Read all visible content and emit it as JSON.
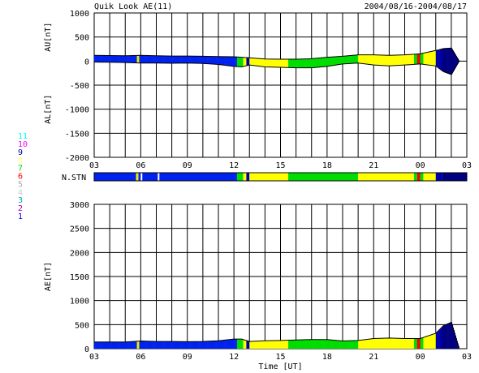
{
  "header": {
    "title": "Quik Look AE(11)",
    "date_range": "2004/08/16-2004/08/17"
  },
  "legend": {
    "entries": [
      {
        "label": "11",
        "color": "#00ffff"
      },
      {
        "label": "10",
        "color": "#ff00ff"
      },
      {
        "label": "9",
        "color": "#0000aa"
      },
      {
        "label": "8",
        "color": "#ffff88"
      },
      {
        "label": "7",
        "color": "#00dd00"
      },
      {
        "label": "6",
        "color": "#ff0000"
      },
      {
        "label": "5",
        "color": "#aaaaaa"
      },
      {
        "label": "4",
        "color": "#cccccc"
      },
      {
        "label": "3",
        "color": "#00aaaa"
      },
      {
        "label": "2",
        "color": "#aa00aa"
      },
      {
        "label": "1",
        "color": "#0000ff"
      }
    ]
  },
  "chart_data": [
    {
      "type": "area",
      "name": "AU/AL",
      "ylabel_top": "AU[nT]",
      "ylabel_bottom": "AL[nT]",
      "ylim": [
        -2000,
        1000
      ],
      "yticks": [
        1000,
        500,
        0,
        -500,
        -1000,
        -1500,
        -2000
      ],
      "xticks": [
        "03",
        "06",
        "09",
        "12",
        "15",
        "18",
        "21",
        "00",
        "03"
      ],
      "xlim_hours": [
        3,
        27
      ],
      "grid": true,
      "x_hours": [
        3,
        4,
        5,
        6,
        7,
        8,
        9,
        10,
        11,
        12,
        12.5,
        13,
        14,
        15,
        16,
        17,
        18,
        19,
        20,
        21,
        22,
        23,
        24,
        25,
        25.5,
        26,
        26.5
      ],
      "au": [
        120,
        115,
        110,
        120,
        110,
        105,
        105,
        100,
        95,
        90,
        80,
        70,
        45,
        40,
        40,
        50,
        80,
        100,
        130,
        130,
        120,
        130,
        150,
        220,
        260,
        270,
        0
      ],
      "al": [
        -20,
        -25,
        -30,
        -40,
        -40,
        -45,
        -40,
        -50,
        -70,
        -110,
        -120,
        -80,
        -120,
        -130,
        -140,
        -140,
        -110,
        -60,
        -40,
        -80,
        -100,
        -80,
        -60,
        -100,
        -220,
        -280,
        0
      ]
    },
    {
      "type": "area",
      "name": "AE",
      "ylabel": "AE[nT]",
      "xlabel": "Time [UT]",
      "ylim": [
        0,
        3000
      ],
      "yticks": [
        3000,
        2500,
        2000,
        1500,
        1000,
        500,
        0
      ],
      "xticks": [
        "03",
        "06",
        "09",
        "12",
        "15",
        "18",
        "21",
        "00",
        "03"
      ],
      "xlim_hours": [
        3,
        27
      ],
      "grid": true,
      "x_hours": [
        3,
        4,
        5,
        6,
        7,
        8,
        9,
        10,
        11,
        12,
        12.5,
        13,
        14,
        15,
        16,
        17,
        18,
        19,
        20,
        21,
        22,
        23,
        24,
        25,
        25.5,
        26,
        26.5
      ],
      "values": [
        140,
        140,
        140,
        160,
        150,
        150,
        145,
        150,
        165,
        200,
        200,
        150,
        165,
        170,
        180,
        190,
        190,
        160,
        170,
        210,
        220,
        210,
        210,
        320,
        480,
        550,
        0
      ]
    }
  ],
  "station_bar": {
    "label": "N.STN",
    "segments": [
      {
        "start": 3,
        "end": 5.7,
        "color": "#0022ee"
      },
      {
        "start": 5.7,
        "end": 5.85,
        "color": "#eeee00"
      },
      {
        "start": 5.85,
        "end": 6.0,
        "color": "#0022ee"
      },
      {
        "start": 6.0,
        "end": 6.1,
        "color": "#ffffff"
      },
      {
        "start": 6.1,
        "end": 7.1,
        "color": "#0022ee"
      },
      {
        "start": 7.1,
        "end": 7.2,
        "color": "#ffffff"
      },
      {
        "start": 7.2,
        "end": 12.2,
        "color": "#0022ee"
      },
      {
        "start": 12.2,
        "end": 12.6,
        "color": "#00dd00"
      },
      {
        "start": 12.6,
        "end": 12.8,
        "color": "#ffff00"
      },
      {
        "start": 12.8,
        "end": 13.0,
        "color": "#0000aa"
      },
      {
        "start": 13.0,
        "end": 15.5,
        "color": "#ffff00"
      },
      {
        "start": 15.5,
        "end": 20.0,
        "color": "#00dd00"
      },
      {
        "start": 20.0,
        "end": 23.6,
        "color": "#ffff00"
      },
      {
        "start": 23.6,
        "end": 23.8,
        "color": "#00dd00"
      },
      {
        "start": 23.8,
        "end": 24.0,
        "color": "#ff0000"
      },
      {
        "start": 24.0,
        "end": 24.2,
        "color": "#00dd00"
      },
      {
        "start": 24.2,
        "end": 25.0,
        "color": "#ffff00"
      },
      {
        "start": 25.0,
        "end": 25.4,
        "color": "#0000aa"
      },
      {
        "start": 25.4,
        "end": 27.0,
        "color": "#000080"
      }
    ]
  }
}
